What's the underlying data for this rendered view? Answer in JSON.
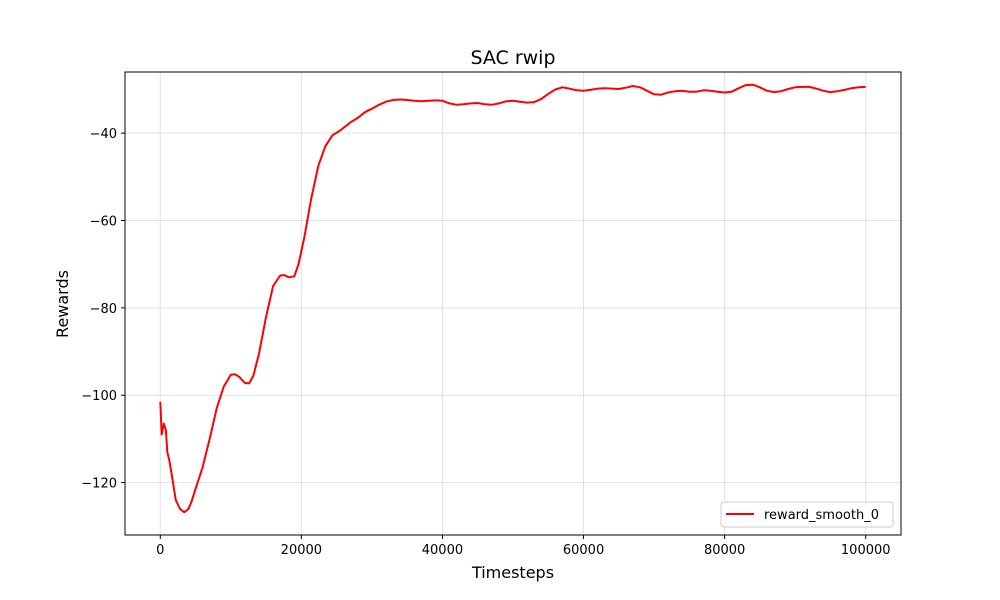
{
  "chart_data": {
    "type": "line",
    "title": "SAC rwip",
    "xlabel": "Timesteps",
    "ylabel": "Rewards",
    "xlim": [
      -5000,
      105000
    ],
    "ylim": [
      -132,
      -26
    ],
    "xticks": [
      0,
      20000,
      40000,
      60000,
      80000,
      100000
    ],
    "yticks": [
      -120,
      -100,
      -80,
      -60,
      -40
    ],
    "ytick_labels": [
      "−120",
      "−100",
      "−80",
      "−60",
      "−40"
    ],
    "grid": true,
    "legend_position": "lower-right",
    "series": [
      {
        "name": "reward_smooth_0",
        "color": "#ff0000",
        "x": [
          0,
          200,
          500,
          800,
          1000,
          1300,
          1600,
          2200,
          2800,
          3400,
          4000,
          4400,
          5000,
          6000,
          7000,
          8000,
          9000,
          10000,
          10600,
          11200,
          12000,
          12600,
          13200,
          14000,
          15000,
          16000,
          17000,
          17600,
          18200,
          19000,
          19600,
          20400,
          21400,
          22400,
          23400,
          24400,
          25400,
          26200,
          27000,
          28000,
          29000,
          30000,
          31000,
          32000,
          33000,
          34000,
          35000,
          36000,
          37000,
          38000,
          39000,
          40000,
          41000,
          42000,
          43000,
          44000,
          45000,
          46000,
          47000,
          48000,
          49000,
          50000,
          51000,
          52000,
          53000,
          54000,
          55000,
          56000,
          57000,
          58000,
          59000,
          60000,
          61000,
          62000,
          63000,
          64000,
          65000,
          66000,
          67000,
          68000,
          69000,
          70000,
          71000,
          72000,
          73000,
          74000,
          75000,
          76000,
          77000,
          78000,
          79000,
          80000,
          81000,
          82000,
          83000,
          84000,
          85000,
          86000,
          87000,
          88000,
          89000,
          90000,
          91000,
          92000,
          93000,
          94000,
          95000,
          96000,
          97000,
          98000,
          99000,
          100000
        ],
        "y": [
          -101.5,
          -109,
          -106.5,
          -108,
          -113,
          -115,
          -118,
          -124,
          -126,
          -126.8,
          -126,
          -124.5,
          -121.5,
          -116.5,
          -110,
          -103,
          -98,
          -95.3,
          -95.2,
          -95.8,
          -97.2,
          -97.3,
          -95.5,
          -90.5,
          -82,
          -75,
          -72.6,
          -72.5,
          -73,
          -72.8,
          -70,
          -64,
          -55,
          -47.5,
          -43,
          -40.5,
          -39.5,
          -38.5,
          -37.5,
          -36.5,
          -35.2,
          -34.4,
          -33.5,
          -32.8,
          -32.4,
          -32.3,
          -32.4,
          -32.6,
          -32.7,
          -32.6,
          -32.5,
          -32.6,
          -33.2,
          -33.5,
          -33.4,
          -33.2,
          -33.1,
          -33.4,
          -33.5,
          -33.2,
          -32.7,
          -32.6,
          -32.8,
          -33,
          -32.9,
          -32.2,
          -31,
          -30,
          -29.5,
          -29.8,
          -30.2,
          -30.3,
          -30.1,
          -29.8,
          -29.7,
          -29.8,
          -29.9,
          -29.6,
          -29.2,
          -29.5,
          -30.3,
          -31.1,
          -31.2,
          -30.7,
          -30.4,
          -30.3,
          -30.5,
          -30.5,
          -30.2,
          -30.3,
          -30.5,
          -30.7,
          -30.5,
          -29.7,
          -29,
          -28.9,
          -29.5,
          -30.3,
          -30.6,
          -30.4,
          -29.9,
          -29.5,
          -29.4,
          -29.4,
          -29.8,
          -30.3,
          -30.6,
          -30.4,
          -30.1,
          -29.7,
          -29.5,
          -29.4
        ]
      }
    ]
  }
}
